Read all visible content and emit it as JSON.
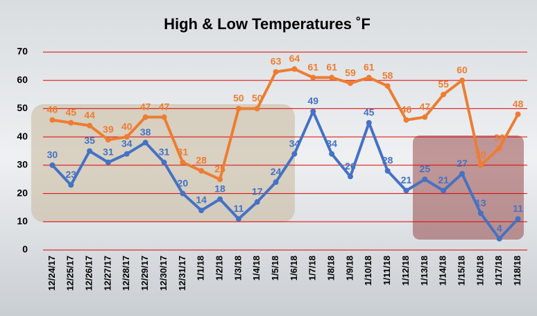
{
  "chart_data": {
    "type": "line",
    "title": "High & Low Temperatures ˚F",
    "categories": [
      "12/24/17",
      "12/25/17",
      "12/26/17",
      "12/27/17",
      "12/28/17",
      "12/29/17",
      "12/30/17",
      "12/31/17",
      "1/1/18",
      "1/2/18",
      "1/3/18",
      "1/4/18",
      "1/5/18",
      "1/6/18",
      "1/7/18",
      "1/8/18",
      "1/9/18",
      "1/10/18",
      "1/11/18",
      "1/12/18",
      "1/13/18",
      "1/14/18",
      "1/15/18",
      "1/16/18",
      "1/17/18",
      "1/18/18"
    ],
    "series": [
      {
        "color": "#ed7d31",
        "values": [
          46,
          45,
          44,
          39,
          40,
          47,
          47,
          31,
          28,
          25,
          50,
          50,
          63,
          64,
          61,
          61,
          59,
          61,
          58,
          46,
          47,
          55,
          60,
          30,
          36,
          48
        ]
      },
      {
        "color": "#4472c4",
        "values": [
          30,
          23,
          35,
          31,
          34,
          38,
          31,
          20,
          14,
          18,
          11,
          17,
          24,
          34,
          49,
          34,
          26,
          45,
          28,
          21,
          25,
          21,
          27,
          13,
          4,
          11
        ]
      }
    ],
    "ylim": [
      0,
      70
    ],
    "yticks": [
      0,
      10,
      20,
      30,
      40,
      50,
      60,
      70
    ],
    "grid": true,
    "grid_color": "#e00000"
  }
}
